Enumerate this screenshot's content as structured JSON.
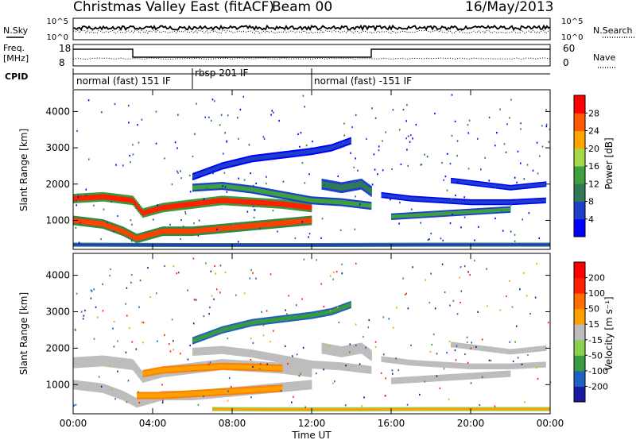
{
  "header": {
    "title": "Christmas Valley East (fitACF)",
    "beam": "Beam 00",
    "date": "16/May/2013"
  },
  "top_panels": {
    "nsky_label": "N.Sky",
    "nsky_ticks": [
      "10^5",
      "10^0"
    ],
    "nsearch_ticks": [
      "10^5",
      "10^0"
    ],
    "nsearch_label": "N.Search",
    "freq_label": "Freq.",
    "freq_unit": "[MHz]",
    "freq_ticks": [
      "18",
      "8"
    ],
    "nave_ticks": [
      "60",
      "0"
    ],
    "nave_label": "Nave",
    "cpid_label": "CPID",
    "cpid_segments": [
      {
        "label": "normal (fast) 151 IF",
        "start_hour": 0,
        "end_hour": 6
      },
      {
        "label": "rbsp 201 IF",
        "start_hour": 6,
        "end_hour": 12
      },
      {
        "label": "normal (fast) -151 IF",
        "start_hour": 12,
        "end_hour": 24
      }
    ],
    "freq_trace": [
      {
        "start_hour": 0,
        "end_hour": 3.0,
        "level": "high"
      },
      {
        "start_hour": 3.0,
        "end_hour": 15.0,
        "level": "low"
      },
      {
        "start_hour": 15.0,
        "end_hour": 24,
        "level": "high"
      }
    ]
  },
  "chart_data": [
    {
      "type": "heatmap",
      "title": "",
      "xlabel": "",
      "ylabel": "Slant Range [km]",
      "xlim": [
        0,
        24
      ],
      "ylim": [
        200,
        4600
      ],
      "yticks": [
        "1000",
        "2000",
        "3000",
        "4000"
      ],
      "colorbar": {
        "label": "Power [dB]",
        "ticks": [
          "4",
          "8",
          "12",
          "16",
          "20",
          "24",
          "28"
        ],
        "colors": [
          "#0000ff",
          "#1d3fcc",
          "#2f7a55",
          "#3fa040",
          "#a6d84a",
          "#ffa500",
          "#ff5a00",
          "#ff0000"
        ]
      },
      "bands": [
        {
          "x": [
            0.0,
            1.5,
            3.0,
            3.5,
            4.5,
            6.0,
            7.5,
            9.0,
            10.5,
            12.0
          ],
          "y": [
            1600,
            1650,
            1550,
            1200,
            1350,
            1450,
            1550,
            1500,
            1450,
            1350
          ],
          "width": 260,
          "core": "#ff2000",
          "edge": "#3a9a40"
        },
        {
          "x": [
            0.0,
            1.5,
            2.5,
            3.2,
            4.5,
            6.0,
            8.0,
            10.0,
            12.0
          ],
          "y": [
            1000,
            900,
            700,
            500,
            700,
            700,
            800,
            900,
            1000
          ],
          "width": 260,
          "core": "#ff4000",
          "edge": "#2f8a45"
        },
        {
          "x": [
            6.0,
            7.5,
            9.0,
            10.5,
            12.0,
            13.5,
            15.0
          ],
          "y": [
            1900,
            1950,
            1850,
            1700,
            1550,
            1500,
            1400
          ],
          "width": 220,
          "core": "#3fa040",
          "edge": "#1d3fcc"
        },
        {
          "x": [
            16.0,
            17.5,
            19.0,
            20.5,
            22.0
          ],
          "y": [
            1100,
            1150,
            1200,
            1250,
            1300
          ],
          "width": 180,
          "core": "#3fa040",
          "edge": "#1d3fcc"
        },
        {
          "x": [
            15.5,
            17.0,
            18.5,
            20.0,
            22.0,
            23.8
          ],
          "y": [
            1700,
            1600,
            1550,
            1500,
            1500,
            1550
          ],
          "width": 160,
          "core": "#1d3fcc",
          "edge": "#0000ff"
        },
        {
          "x": [
            19.0,
            20.5,
            22.0,
            23.8
          ],
          "y": [
            2100,
            2000,
            1900,
            2000
          ],
          "width": 150,
          "core": "#1d3fcc",
          "edge": "#0000ff"
        },
        {
          "x": [
            6.0,
            7.5,
            9.0,
            10.5,
            12.0,
            13.0,
            14.0
          ],
          "y": [
            2200,
            2500,
            2700,
            2800,
            2900,
            3000,
            3200
          ],
          "width": 200,
          "core": "#1d3fcc",
          "edge": "#0000ff"
        },
        {
          "x": [
            12.5,
            13.5,
            14.5,
            15.0
          ],
          "y": [
            2000,
            1900,
            2000,
            1800
          ],
          "width": 300,
          "core": "#2f7a55",
          "edge": "#1d3fcc"
        },
        {
          "x": [
            0.0,
            6.0,
            12.0,
            18.0,
            24.0
          ],
          "y": [
            330,
            320,
            320,
            330,
            330
          ],
          "width": 110,
          "core": "#1d3fcc",
          "edge": "#2f7a55"
        }
      ]
    },
    {
      "type": "heatmap",
      "title": "",
      "xlabel": "Time UT",
      "ylabel": "Slant Range [km]",
      "xlim": [
        0,
        24
      ],
      "ylim": [
        200,
        4600
      ],
      "xticks": [
        "00:00",
        "04:00",
        "08:00",
        "12:00",
        "16:00",
        "20:00",
        "00:00"
      ],
      "yticks": [
        "1000",
        "2000",
        "3000",
        "4000"
      ],
      "colorbar": {
        "label": "Velocity [m s⁻¹]",
        "ticks": [
          "200",
          "100",
          "50",
          "15",
          "-15",
          "-50",
          "-100",
          "-200"
        ],
        "colors": [
          "#1a1aa0",
          "#2060c0",
          "#3a9a40",
          "#8ad050",
          "#bdbdbd",
          "#ffa000",
          "#ff7000",
          "#ff2000",
          "#ff0000"
        ]
      },
      "bands": [
        {
          "x": [
            0.0,
            1.5,
            3.0,
            3.5,
            4.5,
            6.0,
            7.5,
            9.0,
            10.5,
            12.0
          ],
          "y": [
            1600,
            1650,
            1550,
            1200,
            1350,
            1450,
            1550,
            1500,
            1450,
            1350
          ],
          "width": 300,
          "core": "#bdbdbd",
          "edge": "#bdbdbd"
        },
        {
          "x": [
            0.0,
            1.5,
            2.5,
            3.2,
            4.5,
            6.0,
            8.0,
            10.0,
            12.0
          ],
          "y": [
            1000,
            900,
            700,
            500,
            700,
            700,
            800,
            900,
            1000
          ],
          "width": 260,
          "core": "#bdbdbd",
          "edge": "#bdbdbd"
        },
        {
          "x": [
            3.2,
            4.5,
            6.0,
            7.5,
            9.0,
            10.5
          ],
          "y": [
            700,
            700,
            750,
            800,
            850,
            900
          ],
          "width": 200,
          "core": "#ffa000",
          "edge": "#ff8000"
        },
        {
          "x": [
            3.5,
            4.5,
            6.0,
            7.5,
            9.0,
            10.5
          ],
          "y": [
            1300,
            1400,
            1450,
            1500,
            1480,
            1450
          ],
          "width": 200,
          "core": "#ffa000",
          "edge": "#ff8000"
        },
        {
          "x": [
            6.0,
            7.5,
            9.0,
            10.5,
            12.0,
            13.5,
            15.0
          ],
          "y": [
            1900,
            1950,
            1850,
            1700,
            1550,
            1500,
            1400
          ],
          "width": 220,
          "core": "#bdbdbd",
          "edge": "#bdbdbd"
        },
        {
          "x": [
            16.0,
            17.5,
            19.0,
            20.5,
            22.0
          ],
          "y": [
            1100,
            1150,
            1200,
            1250,
            1300
          ],
          "width": 180,
          "core": "#bdbdbd",
          "edge": "#bdbdbd"
        },
        {
          "x": [
            15.5,
            17.0,
            18.5,
            20.0,
            22.0,
            23.8
          ],
          "y": [
            1700,
            1600,
            1550,
            1500,
            1500,
            1550
          ],
          "width": 160,
          "core": "#bdbdbd",
          "edge": "#bdbdbd"
        },
        {
          "x": [
            19.0,
            20.5,
            22.0,
            23.8
          ],
          "y": [
            2100,
            2000,
            1900,
            2000
          ],
          "width": 150,
          "core": "#bdbdbd",
          "edge": "#bdbdbd"
        },
        {
          "x": [
            6.0,
            7.5,
            9.0,
            10.5,
            12.0,
            13.0,
            14.0
          ],
          "y": [
            2200,
            2500,
            2700,
            2800,
            2900,
            3000,
            3200
          ],
          "width": 200,
          "core": "#3a9a40",
          "edge": "#2060c0"
        },
        {
          "x": [
            12.5,
            13.5,
            14.5,
            15.0
          ],
          "y": [
            2000,
            1900,
            2000,
            1800
          ],
          "width": 300,
          "core": "#bdbdbd",
          "edge": "#bdbdbd"
        },
        {
          "x": [
            7.0,
            10.0,
            13.0,
            18.0,
            24.0
          ],
          "y": [
            330,
            320,
            320,
            330,
            330
          ],
          "width": 110,
          "core": "#ffa000",
          "edge": "#8ad050"
        }
      ]
    }
  ]
}
